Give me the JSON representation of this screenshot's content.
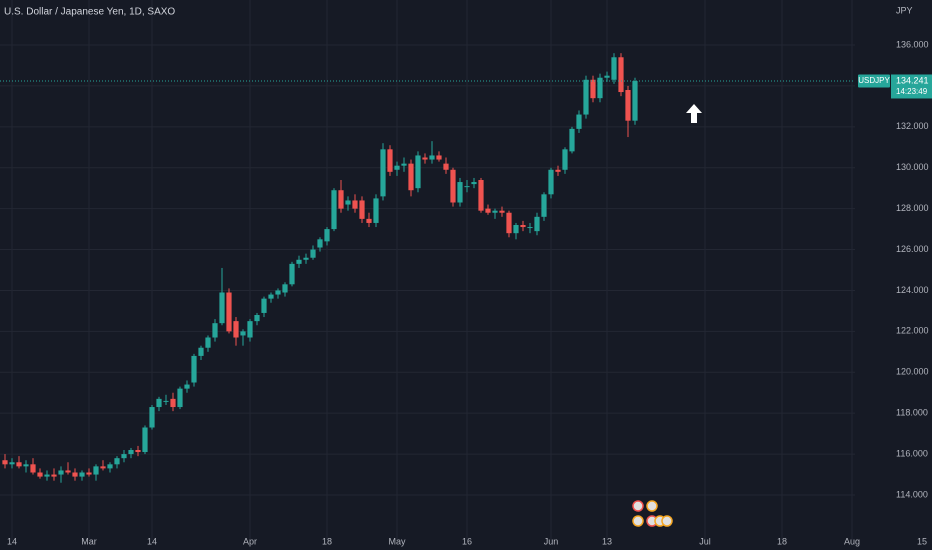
{
  "chart_data": {
    "type": "candlestick",
    "title": "U.S. Dollar / Japanese Yen, 1D, SAXO",
    "currency": "JPY",
    "up_color": "#26a69a",
    "down_color": "#ef5350",
    "grid": true,
    "open": [
      115.7,
      115.5,
      115.6,
      115.4,
      115.5,
      115.1,
      114.9,
      115.0,
      115.0,
      115.2,
      115.1,
      114.9,
      115.1,
      115.0,
      115.4,
      115.3,
      115.5,
      115.8,
      116.0,
      116.2,
      116.1,
      117.3,
      118.3,
      118.6,
      118.7,
      118.3,
      119.2,
      119.5,
      120.8,
      121.2,
      121.7,
      122.4,
      123.9,
      122.5,
      121.8,
      121.7,
      122.5,
      122.9,
      123.6,
      123.8,
      123.9,
      124.3,
      125.3,
      125.5,
      125.6,
      126.1,
      126.4,
      127.0,
      128.9,
      128.2,
      128.4,
      128.4,
      127.5,
      127.3,
      128.6,
      130.9,
      129.9,
      130.1,
      130.2,
      129.0,
      130.5,
      130.4,
      130.6,
      130.2,
      129.9,
      128.3,
      129.1,
      129.2,
      129.4,
      128.0,
      127.8,
      127.9,
      127.8,
      126.8,
      127.2,
      127.1,
      126.9,
      127.6,
      128.7,
      129.9,
      129.9,
      130.8,
      131.9,
      132.6,
      134.3,
      133.4,
      134.4,
      134.3,
      135.4,
      133.8,
      132.3
    ],
    "high": [
      116.0,
      115.8,
      115.9,
      115.7,
      115.8,
      115.3,
      115.2,
      115.3,
      115.4,
      115.6,
      115.3,
      115.2,
      115.3,
      115.5,
      115.7,
      115.6,
      115.9,
      116.2,
      116.3,
      116.4,
      117.4,
      118.4,
      118.8,
      118.9,
      119.0,
      119.3,
      119.6,
      120.9,
      121.3,
      121.8,
      122.6,
      125.1,
      124.1,
      122.7,
      122.1,
      122.6,
      122.9,
      123.7,
      123.9,
      124.1,
      124.4,
      125.4,
      125.7,
      125.8,
      126.2,
      126.6,
      127.1,
      129.0,
      129.4,
      128.6,
      128.7,
      128.6,
      127.8,
      128.7,
      131.2,
      131.1,
      130.3,
      130.5,
      130.4,
      130.8,
      130.7,
      131.3,
      130.8,
      130.5,
      130.0,
      129.5,
      129.4,
      129.5,
      129.5,
      128.2,
      128.0,
      128.1,
      127.9,
      127.3,
      127.4,
      127.3,
      127.8,
      128.8,
      130.0,
      130.1,
      131.0,
      132.0,
      132.8,
      134.5,
      134.5,
      134.6,
      134.7,
      135.6,
      135.6,
      134.0,
      134.4
    ],
    "low": [
      115.3,
      115.3,
      115.3,
      115.1,
      115.0,
      114.8,
      114.7,
      114.7,
      114.6,
      115.0,
      114.7,
      114.7,
      114.9,
      114.7,
      115.2,
      115.1,
      115.3,
      115.6,
      115.8,
      115.9,
      116.0,
      117.2,
      118.1,
      118.4,
      118.1,
      118.2,
      119.0,
      119.3,
      120.6,
      121.0,
      121.5,
      122.3,
      121.9,
      121.3,
      121.3,
      121.5,
      122.3,
      122.7,
      123.4,
      123.6,
      123.7,
      124.2,
      125.1,
      125.3,
      125.5,
      125.9,
      126.2,
      126.9,
      127.8,
      127.9,
      127.8,
      127.3,
      127.1,
      127.1,
      128.4,
      129.6,
      129.6,
      129.8,
      128.6,
      128.8,
      130.2,
      130.2,
      130.3,
      129.7,
      128.1,
      128.1,
      128.8,
      129.0,
      127.8,
      127.7,
      127.5,
      127.6,
      126.6,
      126.5,
      126.9,
      126.8,
      126.7,
      127.4,
      128.5,
      129.6,
      129.7,
      130.7,
      131.7,
      132.4,
      133.2,
      133.2,
      134.2,
      134.1,
      133.5,
      131.5,
      132.1
    ],
    "close": [
      115.5,
      115.6,
      115.4,
      115.5,
      115.1,
      114.9,
      115.0,
      114.9,
      115.2,
      115.1,
      114.9,
      115.1,
      115.0,
      115.4,
      115.3,
      115.5,
      115.8,
      116.0,
      116.2,
      116.1,
      117.3,
      118.3,
      118.7,
      118.6,
      118.3,
      119.2,
      119.4,
      120.8,
      121.2,
      121.7,
      122.4,
      123.9,
      122.0,
      121.7,
      122.0,
      122.5,
      122.8,
      123.6,
      123.8,
      124.0,
      124.3,
      125.3,
      125.5,
      125.6,
      126.0,
      126.5,
      127.0,
      128.9,
      128.0,
      128.4,
      128.0,
      127.5,
      127.3,
      128.5,
      130.9,
      129.8,
      130.1,
      130.2,
      128.9,
      130.6,
      130.4,
      130.6,
      130.4,
      129.9,
      128.3,
      129.3,
      129.1,
      129.3,
      127.9,
      127.8,
      127.9,
      127.8,
      126.8,
      127.2,
      127.1,
      127.1,
      127.6,
      128.7,
      129.9,
      129.8,
      130.9,
      131.9,
      132.6,
      134.3,
      133.4,
      134.4,
      134.5,
      135.4,
      133.7,
      132.3,
      134.24
    ],
    "last_price": {
      "symbol": "USDJPY",
      "value": 134.241,
      "countdown": "14:23:49"
    },
    "xlim": [
      -0.714,
      132.43
    ],
    "xticks": [
      {
        "value": 1,
        "label": "14"
      },
      {
        "value": 12,
        "label": "Mar"
      },
      {
        "value": 21,
        "label": "14"
      },
      {
        "value": 35,
        "label": "Apr"
      },
      {
        "value": 46,
        "label": "18"
      },
      {
        "value": 56,
        "label": "May"
      },
      {
        "value": 66,
        "label": "16"
      },
      {
        "value": 78,
        "label": "Jun"
      },
      {
        "value": 86,
        "label": "13"
      },
      {
        "value": 100,
        "label": "Jul"
      },
      {
        "value": 111,
        "label": "18"
      },
      {
        "value": 121,
        "label": "Aug"
      },
      {
        "value": 131,
        "label": "15"
      }
    ],
    "ylim": [
      111.8,
      138.2
    ],
    "yticks": [
      {
        "value": 114,
        "label": "114.000"
      },
      {
        "value": 116,
        "label": "116.000"
      },
      {
        "value": 118,
        "label": "118.000"
      },
      {
        "value": 120,
        "label": "120.000"
      },
      {
        "value": 122,
        "label": "122.000"
      },
      {
        "value": 124,
        "label": "124.000"
      },
      {
        "value": 126,
        "label": "126.000"
      },
      {
        "value": 128,
        "label": "128.000"
      },
      {
        "value": 130,
        "label": "130.000"
      },
      {
        "value": 132,
        "label": "132.000"
      },
      {
        "value": 134,
        "label": "134.000"
      },
      {
        "value": 136,
        "label": "136.000"
      }
    ]
  }
}
